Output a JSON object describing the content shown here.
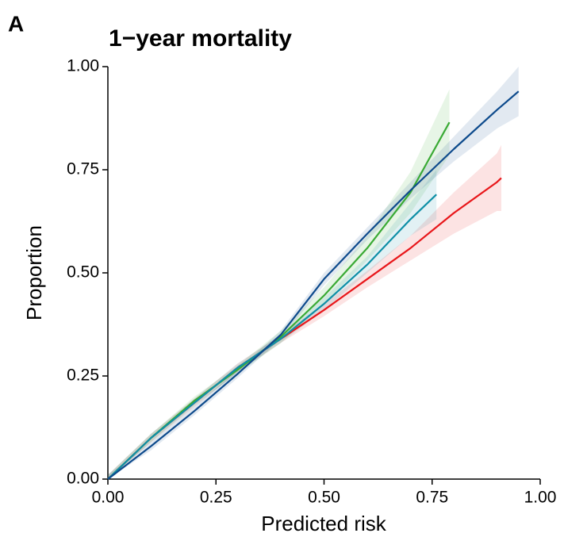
{
  "panel_label": "A",
  "chart_data": {
    "type": "line",
    "title": "1−year mortality",
    "xlabel": "Predicted risk",
    "ylabel": "Proportion",
    "xlim": [
      0,
      1
    ],
    "ylim": [
      0,
      1
    ],
    "xticks": [
      {
        "value": 0,
        "label": "0.00"
      },
      {
        "value": 0.25,
        "label": "0.25"
      },
      {
        "value": 0.5,
        "label": "0.50"
      },
      {
        "value": 0.75,
        "label": "0.75"
      },
      {
        "value": 1,
        "label": "1.00"
      }
    ],
    "yticks": [
      {
        "value": 0,
        "label": "0.00"
      },
      {
        "value": 0.25,
        "label": "0.25"
      },
      {
        "value": 0.5,
        "label": "0.50"
      },
      {
        "value": 0.75,
        "label": "0.75"
      },
      {
        "value": 1,
        "label": "1.00"
      }
    ],
    "grid": false,
    "series": [
      {
        "color": "#e8161a",
        "x": [
          0,
          0.1,
          0.2,
          0.3,
          0.4,
          0.5,
          0.6,
          0.7,
          0.8,
          0.9,
          0.91
        ],
        "values": [
          0,
          0.1,
          0.185,
          0.27,
          0.34,
          0.41,
          0.485,
          0.56,
          0.645,
          0.72,
          0.73
        ],
        "lower": [
          0,
          0.09,
          0.175,
          0.26,
          0.33,
          0.395,
          0.465,
          0.53,
          0.595,
          0.65,
          0.65
        ],
        "upper": [
          0.01,
          0.11,
          0.195,
          0.28,
          0.35,
          0.425,
          0.505,
          0.59,
          0.695,
          0.79,
          0.81
        ]
      },
      {
        "color": "#3aaa35",
        "x": [
          0,
          0.1,
          0.2,
          0.3,
          0.4,
          0.5,
          0.6,
          0.7,
          0.79
        ],
        "values": [
          0,
          0.1,
          0.19,
          0.265,
          0.345,
          0.445,
          0.56,
          0.695,
          0.865
        ],
        "lower": [
          0,
          0.09,
          0.18,
          0.255,
          0.33,
          0.425,
          0.53,
          0.645,
          0.785
        ],
        "upper": [
          0.01,
          0.11,
          0.2,
          0.275,
          0.36,
          0.465,
          0.59,
          0.745,
          0.945
        ]
      },
      {
        "color": "#0e8fa6",
        "x": [
          0,
          0.1,
          0.2,
          0.3,
          0.4,
          0.5,
          0.6,
          0.7,
          0.76
        ],
        "values": [
          0,
          0.1,
          0.185,
          0.27,
          0.34,
          0.425,
          0.52,
          0.63,
          0.69
        ],
        "lower": [
          0,
          0.09,
          0.175,
          0.26,
          0.33,
          0.41,
          0.5,
          0.59,
          0.63
        ],
        "upper": [
          0.01,
          0.11,
          0.195,
          0.28,
          0.35,
          0.44,
          0.54,
          0.67,
          0.75
        ]
      },
      {
        "color": "#0d4a8c",
        "x": [
          0,
          0.1,
          0.2,
          0.3,
          0.4,
          0.5,
          0.6,
          0.7,
          0.8,
          0.9,
          0.95
        ],
        "values": [
          0,
          0.08,
          0.165,
          0.255,
          0.35,
          0.485,
          0.595,
          0.7,
          0.8,
          0.895,
          0.94
        ],
        "lower": [
          0,
          0.07,
          0.155,
          0.245,
          0.34,
          0.47,
          0.58,
          0.68,
          0.77,
          0.85,
          0.88
        ],
        "upper": [
          0.01,
          0.09,
          0.175,
          0.265,
          0.36,
          0.5,
          0.61,
          0.72,
          0.83,
          0.94,
          1.0
        ]
      }
    ]
  }
}
